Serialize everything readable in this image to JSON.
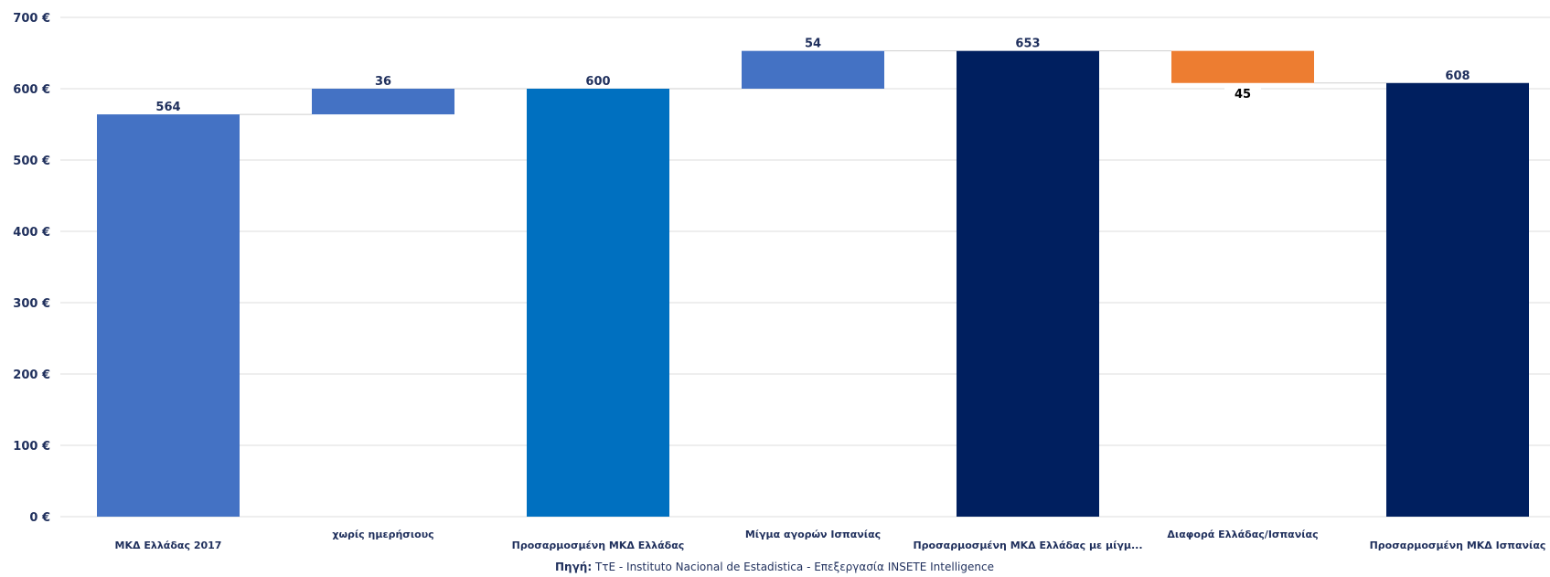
{
  "chart_data": {
    "type": "bar",
    "subtype": "waterfall",
    "categories": [
      "ΜΚΔ Ελλάδας 2017",
      "χωρίς ημερήσιους",
      "Προσαρμοσμένη ΜΚΔ Ελλάδας",
      "Μίγμα αγορών Ισπανίας",
      "Προσαρμοσμένη ΜΚΔ Ελλάδας με μίγμ...",
      "Διαφορά Ελλάδας/Ισπανίας",
      "Προσαρμοσμένη ΜΚΔ Ισπανίας"
    ],
    "bars": [
      {
        "kind": "total",
        "start": 0,
        "end": 564,
        "label": "564",
        "color": "#4472c4"
      },
      {
        "kind": "increase",
        "start": 564,
        "end": 600,
        "label": "36",
        "color": "#4472c4"
      },
      {
        "kind": "total",
        "start": 0,
        "end": 600,
        "label": "600",
        "color": "#0070c0"
      },
      {
        "kind": "increase",
        "start": 600,
        "end": 653,
        "label": "54",
        "color": "#4472c4"
      },
      {
        "kind": "total",
        "start": 0,
        "end": 653,
        "label": "653",
        "color": "#001f5f"
      },
      {
        "kind": "decrease",
        "start": 653,
        "end": 608,
        "label": "45",
        "color": "#ed7d31"
      },
      {
        "kind": "total",
        "start": 0,
        "end": 608,
        "label": "608",
        "color": "#001f5f"
      }
    ],
    "ylim": [
      0,
      700
    ],
    "yticks": [
      0,
      100,
      200,
      300,
      400,
      500,
      600,
      700
    ],
    "ytick_labels": [
      "0 €",
      "100 €",
      "200 €",
      "300 €",
      "400 €",
      "500 €",
      "600 €",
      "700 €"
    ],
    "grid": true,
    "legend": "none"
  },
  "source": {
    "prefix": "Πηγή:",
    "text": " ΤτΕ - Instituto Nacional de Estadistica - Επεξεργασία INSETE Intelligence"
  }
}
